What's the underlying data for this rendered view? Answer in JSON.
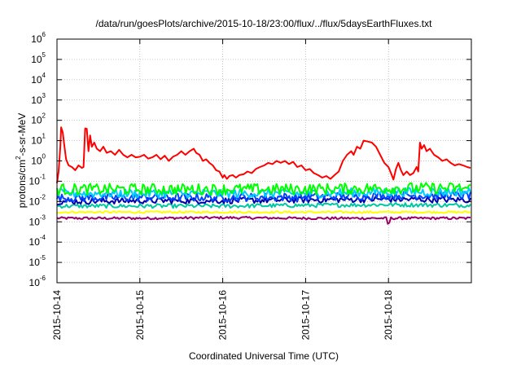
{
  "chart_data": {
    "type": "line",
    "title": "/data/run/goesPlots/archive/2015-10-18/23:00/flux/../flux/5daysEarthFluxes.txt",
    "xlabel": "Coordinated Universal Time (UTC)",
    "ylabel": "protons/cm2-s-sr-MeV",
    "y_scale": "log",
    "ylim": [
      1e-06,
      1000000.0
    ],
    "xlim": [
      "2015-10-14 00:00",
      "2015-10-18 23:00"
    ],
    "x_tick_labels": [
      "2015-10-14",
      "2015-10-15",
      "2015-10-16",
      "2015-10-17",
      "2015-10-18"
    ],
    "y_tick_labels": [
      {
        "base": "10",
        "exp": "-6"
      },
      {
        "base": "10",
        "exp": "-5"
      },
      {
        "base": "10",
        "exp": "-4"
      },
      {
        "base": "10",
        "exp": "-3"
      },
      {
        "base": "10",
        "exp": "-2"
      },
      {
        "base": "10",
        "exp": "-1"
      },
      {
        "base": "10",
        "exp": "0"
      },
      {
        "base": "10",
        "exp": "1"
      },
      {
        "base": "10",
        "exp": "2"
      },
      {
        "base": "10",
        "exp": "3"
      },
      {
        "base": "10",
        "exp": "4"
      },
      {
        "base": "10",
        "exp": "5"
      },
      {
        "base": "10",
        "exp": "6"
      }
    ],
    "grid": true,
    "x_unit": "days since 2015-10-14 00:00 UTC",
    "series": [
      {
        "color": "#ff0000",
        "points": [
          [
            0.0,
            0.08
          ],
          [
            0.02,
            0.3
          ],
          [
            0.04,
            5
          ],
          [
            0.05,
            45
          ],
          [
            0.07,
            25
          ],
          [
            0.09,
            5
          ],
          [
            0.11,
            1.2
          ],
          [
            0.14,
            0.6
          ],
          [
            0.18,
            0.5
          ],
          [
            0.22,
            0.35
          ],
          [
            0.26,
            0.6
          ],
          [
            0.3,
            0.45
          ],
          [
            0.32,
            0.5
          ],
          [
            0.34,
            40
          ],
          [
            0.36,
            38
          ],
          [
            0.38,
            3
          ],
          [
            0.4,
            18
          ],
          [
            0.42,
            5
          ],
          [
            0.45,
            8
          ],
          [
            0.48,
            4
          ],
          [
            0.52,
            3
          ],
          [
            0.56,
            5
          ],
          [
            0.6,
            2.5
          ],
          [
            0.65,
            3
          ],
          [
            0.7,
            2
          ],
          [
            0.75,
            3.5
          ],
          [
            0.8,
            2
          ],
          [
            0.85,
            1.5
          ],
          [
            0.9,
            2
          ],
          [
            0.95,
            1.5
          ],
          [
            1.0,
            1.6
          ],
          [
            1.05,
            2
          ],
          [
            1.1,
            1.3
          ],
          [
            1.15,
            1.5
          ],
          [
            1.2,
            2
          ],
          [
            1.25,
            1.2
          ],
          [
            1.3,
            1.8
          ],
          [
            1.35,
            1
          ],
          [
            1.4,
            1.6
          ],
          [
            1.45,
            2
          ],
          [
            1.5,
            3
          ],
          [
            1.55,
            2
          ],
          [
            1.6,
            3
          ],
          [
            1.65,
            4
          ],
          [
            1.68,
            2.5
          ],
          [
            1.72,
            2
          ],
          [
            1.76,
            1
          ],
          [
            1.8,
            1.2
          ],
          [
            1.84,
            0.8
          ],
          [
            1.88,
            0.6
          ],
          [
            1.92,
            0.35
          ],
          [
            1.96,
            0.3
          ],
          [
            2.0,
            0.15
          ],
          [
            2.02,
            0.2
          ],
          [
            2.05,
            0.13
          ],
          [
            2.08,
            0.18
          ],
          [
            2.12,
            0.2
          ],
          [
            2.16,
            0.15
          ],
          [
            2.2,
            0.2
          ],
          [
            2.25,
            0.22
          ],
          [
            2.3,
            0.3
          ],
          [
            2.35,
            0.25
          ],
          [
            2.4,
            0.4
          ],
          [
            2.45,
            0.5
          ],
          [
            2.5,
            0.6
          ],
          [
            2.55,
            0.8
          ],
          [
            2.6,
            0.7
          ],
          [
            2.65,
            1
          ],
          [
            2.7,
            0.8
          ],
          [
            2.75,
            1
          ],
          [
            2.8,
            0.7
          ],
          [
            2.85,
            0.9
          ],
          [
            2.9,
            0.5
          ],
          [
            2.95,
            0.6
          ],
          [
            3.0,
            0.35
          ],
          [
            3.05,
            0.4
          ],
          [
            3.1,
            0.25
          ],
          [
            3.15,
            0.2
          ],
          [
            3.2,
            0.15
          ],
          [
            3.25,
            0.18
          ],
          [
            3.3,
            0.13
          ],
          [
            3.35,
            0.2
          ],
          [
            3.4,
            0.3
          ],
          [
            3.45,
            1
          ],
          [
            3.5,
            2
          ],
          [
            3.55,
            3
          ],
          [
            3.58,
            2
          ],
          [
            3.62,
            5
          ],
          [
            3.66,
            4
          ],
          [
            3.7,
            10
          ],
          [
            3.75,
            9
          ],
          [
            3.8,
            8
          ],
          [
            3.85,
            5
          ],
          [
            3.9,
            2
          ],
          [
            3.95,
            0.8
          ],
          [
            4.0,
            0.5
          ],
          [
            4.03,
            0.25
          ],
          [
            4.06,
            0.12
          ],
          [
            4.09,
            0.4
          ],
          [
            4.12,
            0.8
          ],
          [
            4.15,
            0.35
          ],
          [
            4.18,
            0.2
          ],
          [
            4.22,
            0.3
          ],
          [
            4.26,
            0.2
          ],
          [
            4.3,
            0.25
          ],
          [
            4.34,
            0.5
          ],
          [
            4.36,
            0.3
          ],
          [
            4.38,
            8
          ],
          [
            4.4,
            4
          ],
          [
            4.43,
            6
          ],
          [
            4.46,
            3
          ],
          [
            4.5,
            4
          ],
          [
            4.55,
            2
          ],
          [
            4.6,
            1.5
          ],
          [
            4.65,
            1
          ],
          [
            4.7,
            1.2
          ],
          [
            4.75,
            0.8
          ],
          [
            4.8,
            0.6
          ],
          [
            4.85,
            0.7
          ],
          [
            4.9,
            0.6
          ],
          [
            4.95,
            0.5
          ],
          [
            4.99,
            0.45
          ]
        ]
      },
      {
        "color": "#00ff00",
        "pattern": "noise",
        "points": [
          [
            0.0,
            0.04
          ],
          [
            1.0,
            0.04
          ],
          [
            2.0,
            0.04
          ],
          [
            3.0,
            0.04
          ],
          [
            4.0,
            0.045
          ],
          [
            4.99,
            0.045
          ]
        ],
        "wiggle": 0.28
      },
      {
        "color": "#00ccff",
        "pattern": "noise",
        "points": [
          [
            0.0,
            0.025
          ],
          [
            1.0,
            0.025
          ],
          [
            2.0,
            0.025
          ],
          [
            3.0,
            0.025
          ],
          [
            4.0,
            0.03
          ],
          [
            4.99,
            0.03
          ]
        ],
        "wiggle": 0.22
      },
      {
        "color": "#0044ff",
        "pattern": "noise",
        "points": [
          [
            0.0,
            0.015
          ],
          [
            1.0,
            0.016
          ],
          [
            2.0,
            0.016
          ],
          [
            3.0,
            0.017
          ],
          [
            4.0,
            0.02
          ],
          [
            4.99,
            0.02
          ]
        ],
        "wiggle": 0.2
      },
      {
        "color": "#0000aa",
        "pattern": "noise",
        "points": [
          [
            0.0,
            0.01
          ],
          [
            1.0,
            0.011
          ],
          [
            2.0,
            0.011
          ],
          [
            3.0,
            0.012
          ],
          [
            4.0,
            0.013
          ],
          [
            4.99,
            0.012
          ]
        ],
        "wiggle": 0.15
      },
      {
        "color": "#00c8a0",
        "pattern": "noise",
        "points": [
          [
            0.0,
            0.006
          ],
          [
            1.0,
            0.006
          ],
          [
            2.0,
            0.006
          ],
          [
            3.0,
            0.0065
          ],
          [
            4.0,
            0.007
          ],
          [
            4.99,
            0.0065
          ]
        ],
        "wiggle": 0.1
      },
      {
        "color": "#ffff00",
        "pattern": "noise",
        "points": [
          [
            0.0,
            0.003
          ],
          [
            1.0,
            0.003
          ],
          [
            2.0,
            0.003
          ],
          [
            3.0,
            0.003
          ],
          [
            4.0,
            0.003
          ],
          [
            4.99,
            0.003
          ]
        ],
        "wiggle": 0.05
      },
      {
        "color": "#990066",
        "pattern": "noise",
        "points": [
          [
            0.0,
            0.0015
          ],
          [
            1.0,
            0.0015
          ],
          [
            2.0,
            0.0016
          ],
          [
            3.0,
            0.0015
          ],
          [
            3.98,
            0.0015
          ],
          [
            4.0,
            0.0005
          ],
          [
            4.02,
            0.0015
          ],
          [
            4.99,
            0.0015
          ]
        ],
        "wiggle": 0.06
      }
    ]
  }
}
